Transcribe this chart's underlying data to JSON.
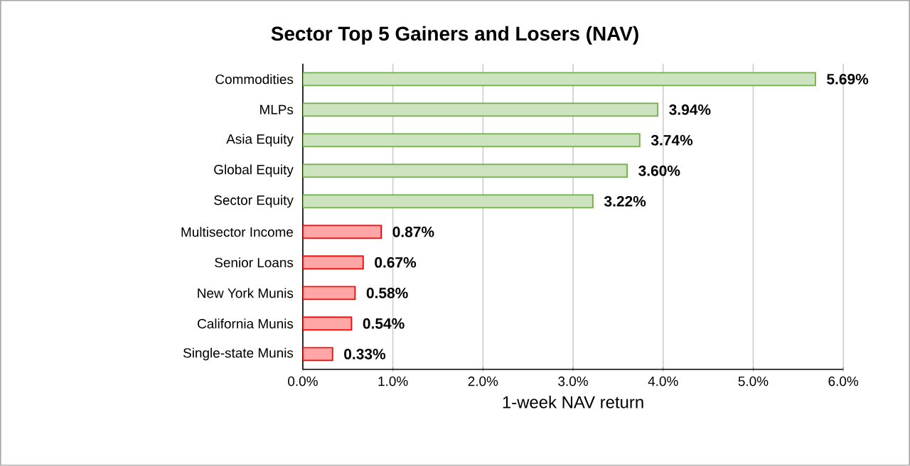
{
  "chart_data": {
    "type": "bar",
    "orientation": "horizontal",
    "title": "Sector Top 5 Gainers and Losers (NAV)",
    "xlabel": "1-week NAV return",
    "categories": [
      "Commodities",
      "MLPs",
      "Asia Equity",
      "Global Equity",
      "Sector Equity",
      "Multisector Income",
      "Senior Loans",
      "New York Munis",
      "California Munis",
      "Single-state Munis"
    ],
    "values": [
      5.69,
      3.94,
      3.74,
      3.6,
      3.22,
      0.87,
      0.67,
      0.58,
      0.54,
      0.33
    ],
    "value_labels": [
      "5.69%",
      "3.94%",
      "3.74%",
      "3.60%",
      "3.22%",
      "0.87%",
      "0.67%",
      "0.58%",
      "0.54%",
      "0.33%"
    ],
    "colors": [
      "#70ad47",
      "#70ad47",
      "#70ad47",
      "#70ad47",
      "#70ad47",
      "#ff0000",
      "#ff0000",
      "#ff0000",
      "#ff0000",
      "#ff0000"
    ],
    "xlim": [
      0,
      6
    ],
    "xticks": [
      {
        "value": 0,
        "label": "0.0%"
      },
      {
        "value": 1,
        "label": "1.0%"
      },
      {
        "value": 2,
        "label": "2.0%"
      },
      {
        "value": 3,
        "label": "3.0%"
      },
      {
        "value": 4,
        "label": "4.0%"
      },
      {
        "value": 5,
        "label": "5.0%"
      },
      {
        "value": 6,
        "label": "6.0%"
      }
    ],
    "grid": "x"
  }
}
